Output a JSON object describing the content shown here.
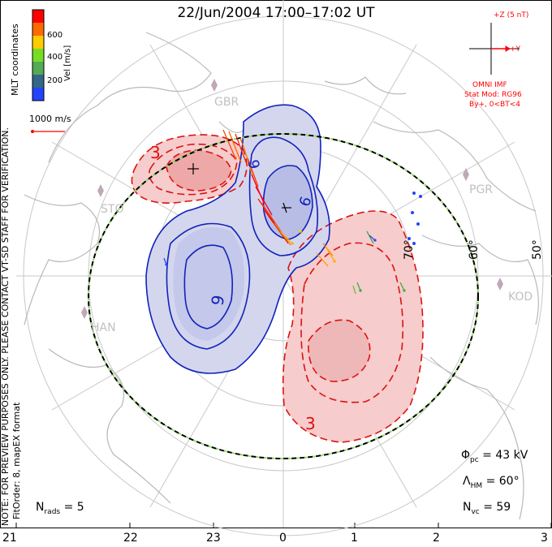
{
  "title": "22/Jun/2004 17:00–17:02 UT",
  "colorbar": {
    "label": "Vel [m/s]",
    "ticks": [
      "600",
      "400",
      "200"
    ],
    "colors": [
      "#ff0000",
      "#ff6a00",
      "#ffcc00",
      "#77dd22",
      "#55aa55",
      "#336688",
      "#2244ff"
    ]
  },
  "coords_label": "MLT coordinates",
  "scale_vector_label": "1000 m/s",
  "imf": {
    "z_label": "+Z (5 nT)",
    "y_label": "+Y",
    "source": "OMNI IMF",
    "stat_mod": "Stat Mod: RG96",
    "condition": "By+, 0<BT<4"
  },
  "notes": {
    "line1": "NOTE: FOR PREVIEW PURPOSES ONLY. PLEASE CONTACT VT-SD STAFF FOR VERIFICATION.",
    "line2": "FitOrder: 8, mapEX format"
  },
  "stats": {
    "phi_pc": "= 43 kV",
    "lambda_hm": "= 60°",
    "n_vc": "= 59",
    "n_rads": "= 5"
  },
  "latitude_labels": [
    "70°",
    "60°",
    "50°"
  ],
  "mlt_axis": [
    "21",
    "22",
    "23",
    "0",
    "1",
    "2",
    "3"
  ],
  "radar_labels": [
    "GBR",
    "STO",
    "HAN",
    "PGR",
    "KOD"
  ],
  "contour_labels": [
    "3",
    "9",
    "6",
    "9",
    "3"
  ],
  "colors": {
    "positive_contour": "#dd1111",
    "negative_contour": "#1122bb",
    "positive_fill": "#f6cccc",
    "negative_fill": "#d4d6ee",
    "boundary_dash": "#88dd55",
    "grid": "#c8c8c8"
  }
}
